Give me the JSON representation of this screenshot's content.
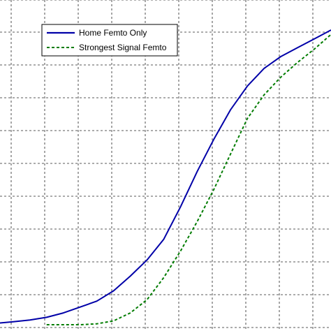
{
  "chart_data": {
    "type": "line",
    "title": "",
    "xlabel": "",
    "ylabel": "",
    "xlim": [
      0,
      10
    ],
    "ylim": [
      0,
      1
    ],
    "grid": true,
    "grid_style": "dashed",
    "legend_position": "top-left",
    "series": [
      {
        "name": "Home Femto Only",
        "color": "#0000a8",
        "style": "solid",
        "x": [
          0,
          0.5,
          1.0,
          1.5,
          2.0,
          2.5,
          3.0,
          3.5,
          4.0,
          4.5,
          5.0,
          5.5,
          6.0,
          6.5,
          7.0,
          7.5,
          8.0,
          8.5,
          9.0,
          9.5,
          10.0
        ],
        "y": [
          0.005,
          0.01,
          0.016,
          0.025,
          0.04,
          0.06,
          0.08,
          0.115,
          0.165,
          0.22,
          0.29,
          0.4,
          0.52,
          0.63,
          0.73,
          0.81,
          0.87,
          0.91,
          0.94,
          0.97,
          1.0
        ]
      },
      {
        "name": "Strongest Signal Femto",
        "color": "#007c00",
        "style": "dashed",
        "x": [
          1.5,
          2.0,
          2.5,
          3.0,
          3.5,
          4.0,
          4.5,
          5.0,
          5.5,
          6.0,
          6.5,
          7.0,
          7.5,
          8.0,
          8.5,
          9.0,
          9.5,
          10.0
        ],
        "y": [
          0.0,
          0.0,
          0.0,
          0.003,
          0.013,
          0.04,
          0.085,
          0.16,
          0.25,
          0.35,
          0.46,
          0.58,
          0.7,
          0.78,
          0.84,
          0.89,
          0.935,
          0.985
        ]
      }
    ]
  }
}
